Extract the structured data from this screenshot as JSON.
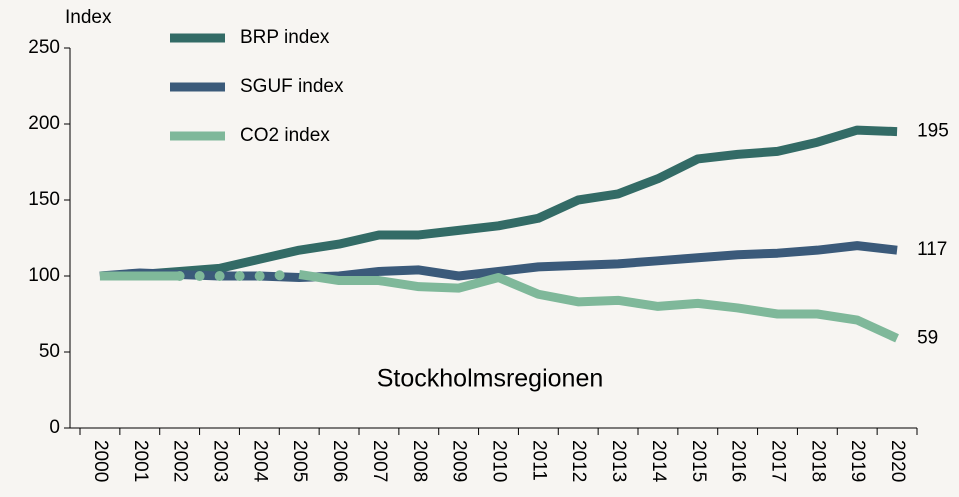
{
  "chart_data": {
    "type": "line",
    "y_label": "Index",
    "annotation": "Stockholmsregionen",
    "categories": [
      "2000",
      "2001",
      "2002",
      "2003",
      "2004",
      "2005",
      "2006",
      "2007",
      "2008",
      "2009",
      "2010",
      "2011",
      "2012",
      "2013",
      "2014",
      "2015",
      "2016",
      "2017",
      "2018",
      "2019",
      "2020"
    ],
    "series": [
      {
        "name": "BRP index",
        "color": "#336b66",
        "values": [
          100,
          101,
          103,
          105,
          111,
          117,
          121,
          127,
          127,
          130,
          133,
          138,
          150,
          154,
          164,
          177,
          180,
          182,
          188,
          196,
          195
        ]
      },
      {
        "name": "SGUF index",
        "color": "#3b5a7a",
        "values": [
          100,
          102,
          101,
          100,
          100,
          99,
          100,
          103,
          104,
          100,
          103,
          106,
          107,
          108,
          110,
          112,
          114,
          115,
          117,
          120,
          117
        ]
      },
      {
        "name": "CO2 index",
        "color": "#7fb89a",
        "values": [
          100,
          100,
          100,
          100,
          100,
          101,
          97,
          97,
          93,
          92,
          99,
          88,
          83,
          84,
          80,
          82,
          79,
          75,
          75,
          71,
          59
        ],
        "dotted_between": [
          2,
          5
        ]
      }
    ],
    "end_labels": true,
    "ylim": [
      0,
      250
    ],
    "yticks": [
      0,
      50,
      100,
      150,
      200,
      250
    ],
    "grid": false
  }
}
